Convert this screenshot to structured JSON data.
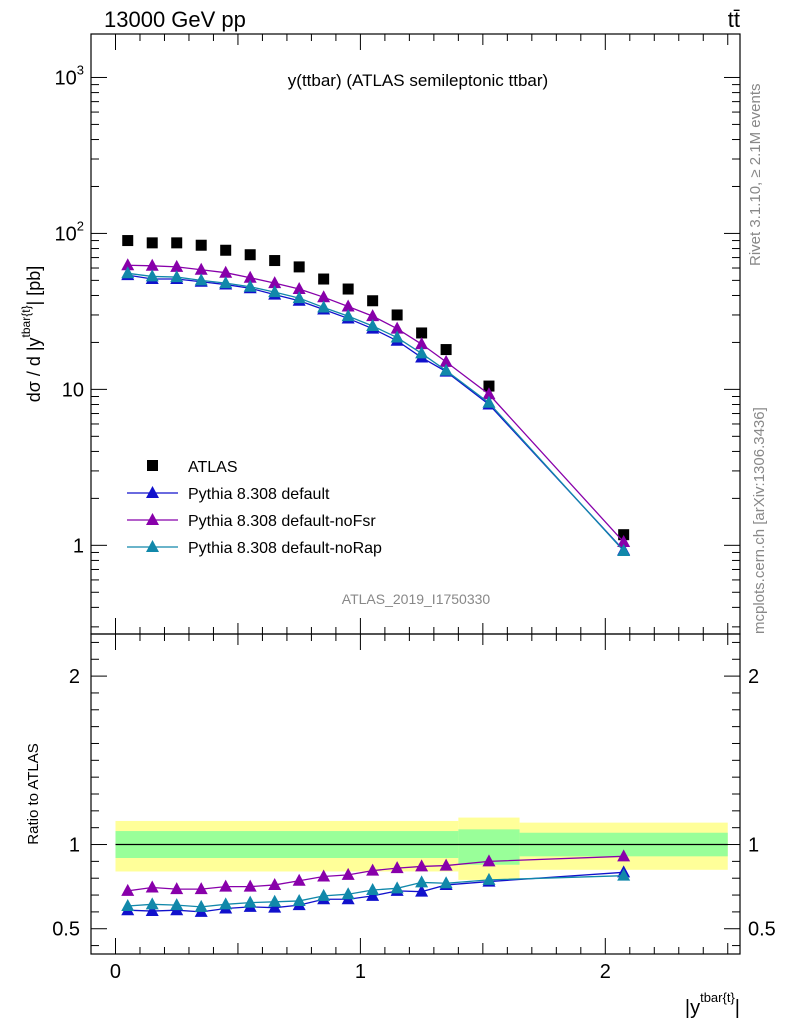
{
  "header": {
    "energy": "13000 GeV pp",
    "process": "tt̄"
  },
  "side_labels": {
    "rivet": "Rivet 3.1.10, ≥ 2.1M events",
    "mcplots": "mcplots.cern.ch [arXiv:1306.3436]"
  },
  "plot": {
    "title": "y(ttbar) (ATLAS semileptonic ttbar)",
    "analysis_id": "ATLAS_2019_I1750330",
    "ylabel_main": "dσ / d |y^{tbar{t}}| [pb]",
    "ylabel_ratio": "Ratio to ATLAS",
    "xlabel": "|y^{tbar{t}}|"
  },
  "chart_data": [
    {
      "type": "scatter",
      "title": "y(ttbar) (ATLAS semileptonic ttbar)",
      "xlabel": "|y^{tbar{t}}|",
      "ylabel": "dσ / d |y^{tbar{t}}| [pb]",
      "yscale": "log",
      "xlim": [
        -0.1,
        2.55
      ],
      "ylim": [
        0.27,
        1900
      ],
      "x_ticks": [
        {
          "value": 0,
          "label": "0"
        },
        {
          "value": 1,
          "label": "1"
        },
        {
          "value": 2,
          "label": "2"
        }
      ],
      "y_ticks": [
        {
          "value": 1,
          "label": "1"
        },
        {
          "value": 10,
          "label": "10"
        },
        {
          "value": 100,
          "label": "10^2"
        },
        {
          "value": 1000,
          "label": "10^3"
        }
      ],
      "legend_position": "bottom-left",
      "x": [
        0.05,
        0.15,
        0.25,
        0.35,
        0.45,
        0.55,
        0.65,
        0.75,
        0.85,
        0.95,
        1.05,
        1.15,
        1.25,
        1.35,
        1.525,
        2.075
      ],
      "series": [
        {
          "name": "ATLAS",
          "color": "#000000",
          "marker": "square",
          "values": [
            90,
            87,
            87,
            84,
            78,
            73,
            67,
            61,
            51,
            44,
            37,
            30,
            23,
            18,
            10.5,
            1.17
          ]
        },
        {
          "name": "Pythia 8.308 default",
          "color": "#1111cc",
          "marker": "triangle",
          "values": [
            54,
            51,
            51,
            49,
            47,
            44.5,
            40.5,
            37,
            32.5,
            28.5,
            24.5,
            20.5,
            16,
            13,
            8,
            0.93
          ]
        },
        {
          "name": "Pythia 8.308 default-noFsr",
          "color": "#8800aa",
          "marker": "triangle",
          "values": [
            62.5,
            62,
            61,
            58.5,
            56,
            52,
            48,
            44,
            39,
            34,
            29.5,
            24.5,
            19.5,
            15,
            9.3,
            1.05
          ]
        },
        {
          "name": "Pythia 8.308 default-noRap",
          "color": "#1188aa",
          "marker": "triangle",
          "values": [
            55.5,
            53,
            52.5,
            50,
            48,
            45.5,
            42,
            38.5,
            33.5,
            29.5,
            25.5,
            21.5,
            17,
            13.2,
            8.2,
            0.92
          ]
        }
      ]
    },
    {
      "type": "line",
      "ylabel": "Ratio to ATLAS",
      "xlabel": "|y^{tbar{t}}|",
      "xlim": [
        -0.1,
        2.55
      ],
      "ylim": [
        0.35,
        2.25
      ],
      "y_ticks": [
        {
          "value": 0.5,
          "label": "0.5"
        },
        {
          "value": 1,
          "label": "1"
        },
        {
          "value": 2,
          "label": "2"
        }
      ],
      "x_ticks": [
        {
          "value": 0,
          "label": "0"
        },
        {
          "value": 1,
          "label": "1"
        },
        {
          "value": 2,
          "label": "2"
        }
      ],
      "bands": [
        {
          "x_low": 0.0,
          "x_high": 1.4,
          "total_low": 0.84,
          "total_high": 1.14,
          "stat_low": 0.92,
          "stat_high": 1.08
        },
        {
          "x_low": 1.4,
          "x_high": 1.65,
          "total_low": 0.79,
          "total_high": 1.16,
          "stat_low": 0.88,
          "stat_high": 1.09
        },
        {
          "x_low": 1.65,
          "x_high": 2.5,
          "total_low": 0.85,
          "total_high": 1.13,
          "stat_low": 0.93,
          "stat_high": 1.07
        }
      ],
      "x": [
        0.05,
        0.15,
        0.25,
        0.35,
        0.45,
        0.55,
        0.65,
        0.75,
        0.85,
        0.95,
        1.05,
        1.15,
        1.25,
        1.35,
        1.525,
        2.075
      ],
      "series": [
        {
          "name": "Pythia 8.308 default",
          "color": "#1111cc",
          "values": [
            0.61,
            0.605,
            0.61,
            0.6,
            0.62,
            0.63,
            0.625,
            0.64,
            0.675,
            0.675,
            0.695,
            0.725,
            0.72,
            0.76,
            0.78,
            0.835
          ]
        },
        {
          "name": "Pythia 8.308 default-noFsr",
          "color": "#8800aa",
          "values": [
            0.725,
            0.745,
            0.735,
            0.735,
            0.75,
            0.75,
            0.76,
            0.785,
            0.81,
            0.82,
            0.845,
            0.86,
            0.87,
            0.875,
            0.9,
            0.93
          ]
        },
        {
          "name": "Pythia 8.308 default-noRap",
          "color": "#1188aa",
          "values": [
            0.635,
            0.645,
            0.64,
            0.63,
            0.645,
            0.655,
            0.66,
            0.665,
            0.695,
            0.705,
            0.73,
            0.74,
            0.775,
            0.77,
            0.79,
            0.815
          ]
        }
      ]
    }
  ]
}
